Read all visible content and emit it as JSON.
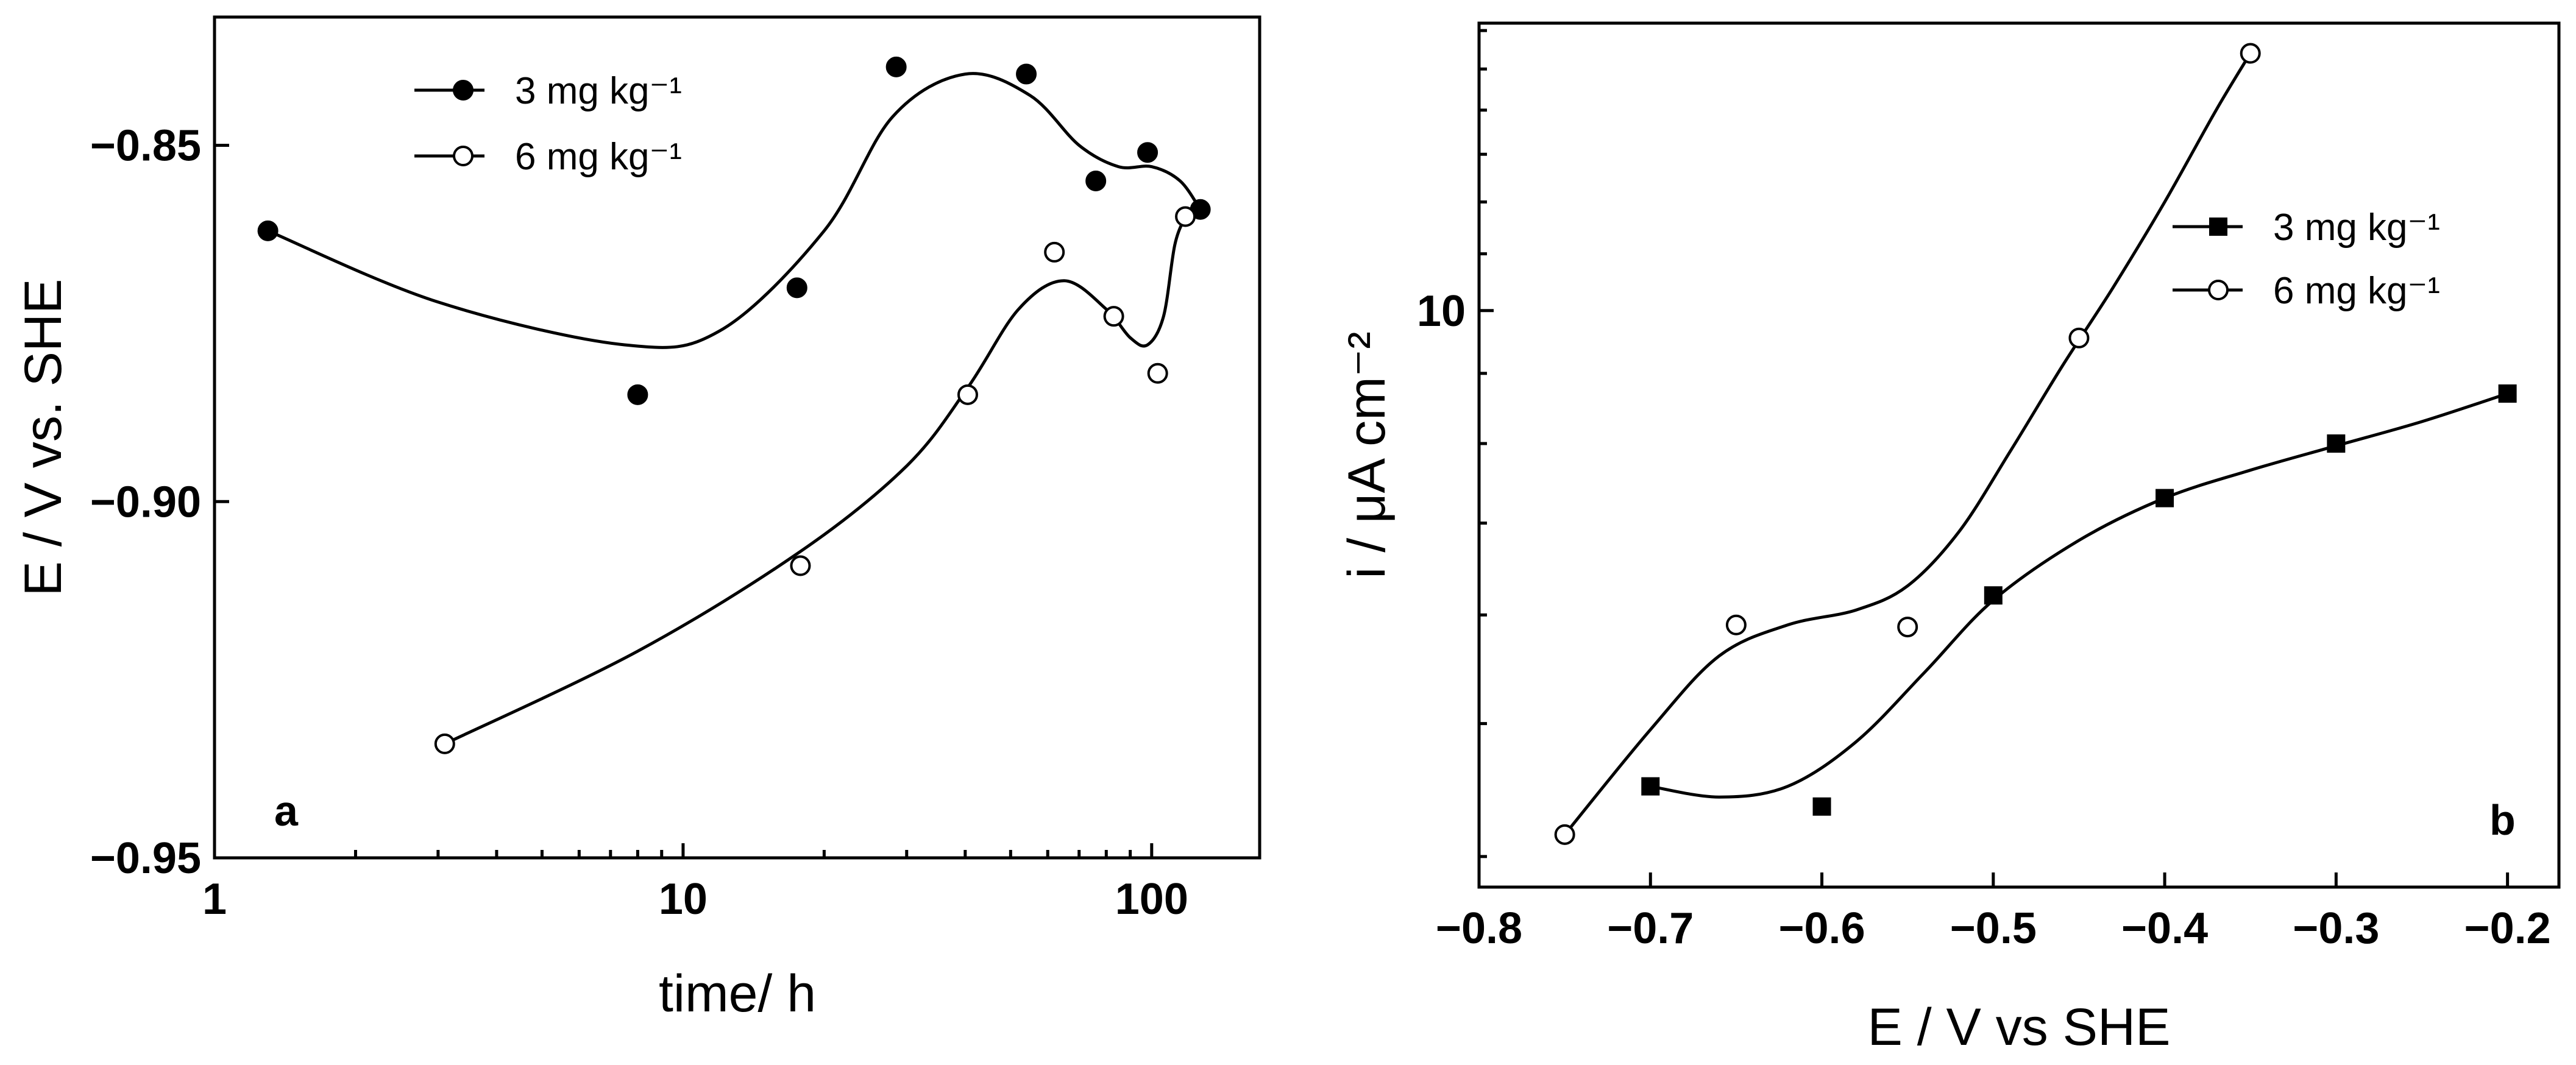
{
  "chart_data": [
    {
      "panel": "a",
      "type": "scatter",
      "x_scale": "log",
      "xlabel": "time/ h",
      "ylabel": "E / V vs. SHE",
      "xlim": [
        1,
        170
      ],
      "ylim": [
        -0.95,
        -0.832
      ],
      "x_ticks": [
        1,
        10,
        100
      ],
      "x_tick_labels": [
        "1",
        "10",
        "100"
      ],
      "y_ticks": [
        -0.85,
        -0.9,
        -0.95
      ],
      "y_tick_labels": [
        "−0.85",
        "−0.90",
        "−0.95"
      ],
      "legend_position": "top-left",
      "series": [
        {
          "name": "3 mg kg⁻¹",
          "marker": "filled-circle",
          "x": [
            1.3,
            8,
            17.5,
            28.5,
            54,
            76,
            98,
            127
          ],
          "y": [
            -0.862,
            -0.885,
            -0.87,
            -0.839,
            -0.84,
            -0.855,
            -0.851,
            -0.859
          ],
          "curve_x": [
            1.3,
            3,
            7.5,
            12,
            20,
            28,
            40,
            55,
            70,
            85,
            100,
            115,
            127
          ],
          "curve_y": [
            -0.862,
            -0.872,
            -0.878,
            -0.876,
            -0.862,
            -0.846,
            -0.84,
            -0.843,
            -0.85,
            -0.853,
            -0.853,
            -0.855,
            -0.859
          ]
        },
        {
          "name": "6 mg kg⁻¹",
          "marker": "open-circle",
          "x": [
            3.1,
            17.8,
            40.5,
            62,
            83,
            103,
            118
          ],
          "y": [
            -0.934,
            -0.909,
            -0.885,
            -0.865,
            -0.874,
            -0.882,
            -0.86
          ],
          "curve_x": [
            3.1,
            8,
            17.8,
            30,
            40.5,
            52,
            65,
            80,
            90,
            98,
            106,
            112,
            118
          ],
          "curve_y": [
            -0.934,
            -0.921,
            -0.907,
            -0.895,
            -0.884,
            -0.873,
            -0.869,
            -0.873,
            -0.877,
            -0.878,
            -0.874,
            -0.864,
            -0.86
          ]
        }
      ],
      "panel_label": "a"
    },
    {
      "panel": "b",
      "type": "scatter",
      "y_scale": "log",
      "xlabel": "E / V vs SHE",
      "ylabel": "i / μA cm⁻²",
      "xlim": [
        -0.8,
        -0.17
      ],
      "ylim": [
        3.8,
        16.2
      ],
      "x_ticks": [
        -0.8,
        -0.7,
        -0.6,
        -0.5,
        -0.4,
        -0.3,
        -0.2
      ],
      "x_tick_labels": [
        "−0.8",
        "−0.7",
        "−0.6",
        "−0.5",
        "−0.4",
        "−0.3",
        "−0.2"
      ],
      "y_ticks": [
        10
      ],
      "y_tick_labels": [
        "10"
      ],
      "legend_position": "top-right",
      "series": [
        {
          "name": "3 mg kg⁻¹",
          "marker": "filled-square",
          "x": [
            -0.7,
            -0.6,
            -0.5,
            -0.4,
            -0.3,
            -0.2
          ],
          "y": [
            4.5,
            4.35,
            6.2,
            7.3,
            8.0,
            8.7
          ],
          "curve_x": [
            -0.7,
            -0.66,
            -0.62,
            -0.58,
            -0.54,
            -0.5,
            -0.45,
            -0.4,
            -0.35,
            -0.3,
            -0.25,
            -0.2
          ],
          "curve_y": [
            4.5,
            4.42,
            4.5,
            4.85,
            5.45,
            6.15,
            6.8,
            7.3,
            7.65,
            7.97,
            8.3,
            8.7
          ]
        },
        {
          "name": "6 mg kg⁻¹",
          "marker": "open-circle",
          "x": [
            -0.75,
            -0.65,
            -0.55,
            -0.45,
            -0.35
          ],
          "y": [
            4.15,
            5.9,
            5.88,
            9.55,
            15.4
          ],
          "curve_x": [
            -0.75,
            -0.7,
            -0.66,
            -0.62,
            -0.58,
            -0.55,
            -0.52,
            -0.49,
            -0.46,
            -0.43,
            -0.4,
            -0.37,
            -0.35
          ],
          "curve_y": [
            4.15,
            4.95,
            5.6,
            5.9,
            6.05,
            6.3,
            6.9,
            7.9,
            9.1,
            10.4,
            12.0,
            14.0,
            15.4
          ]
        }
      ],
      "panel_label": "b"
    }
  ]
}
